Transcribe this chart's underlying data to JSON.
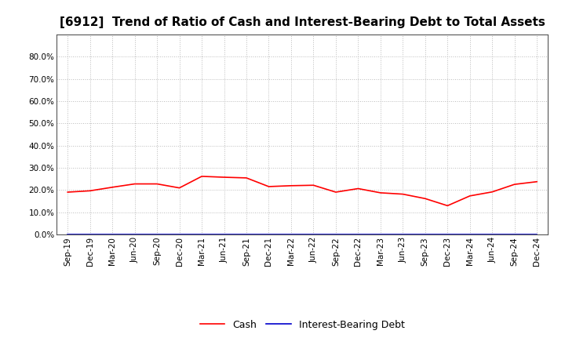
{
  "title": "[6912]  Trend of Ratio of Cash and Interest-Bearing Debt to Total Assets",
  "x_labels": [
    "Sep-19",
    "Dec-19",
    "Mar-20",
    "Jun-20",
    "Sep-20",
    "Dec-20",
    "Mar-21",
    "Jun-21",
    "Sep-21",
    "Dec-21",
    "Mar-22",
    "Jun-22",
    "Sep-22",
    "Dec-22",
    "Mar-23",
    "Jun-23",
    "Sep-23",
    "Dec-23",
    "Mar-24",
    "Jun-24",
    "Sep-24",
    "Dec-24"
  ],
  "cash": [
    0.191,
    0.197,
    0.213,
    0.228,
    0.228,
    0.21,
    0.262,
    0.258,
    0.255,
    0.216,
    0.22,
    0.222,
    0.191,
    0.207,
    0.188,
    0.182,
    0.162,
    0.13,
    0.174,
    0.192,
    0.226,
    0.238
  ],
  "interest_bearing_debt": [
    0.0,
    0.0,
    0.0,
    0.0,
    0.0,
    0.0,
    0.0,
    0.0,
    0.0,
    0.0,
    0.0,
    0.0,
    0.0,
    0.0,
    0.0,
    0.0,
    0.0,
    0.0,
    0.0,
    0.0,
    0.0,
    0.0
  ],
  "cash_color": "#ff0000",
  "interest_bearing_debt_color": "#0000cc",
  "ylim": [
    0.0,
    0.9
  ],
  "yticks": [
    0.0,
    0.1,
    0.2,
    0.3,
    0.4,
    0.5,
    0.6,
    0.7,
    0.8
  ],
  "background_color": "#ffffff",
  "grid_color": "#bbbbbb",
  "title_fontsize": 11,
  "tick_fontsize": 7.5,
  "legend_cash": "Cash",
  "legend_ibd": "Interest-Bearing Debt"
}
